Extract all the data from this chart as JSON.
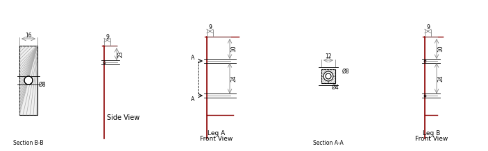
{
  "bg_color": "#ffffff",
  "line_color": "#000000",
  "dark_red": "#8B0000",
  "gray": "#888888",
  "section_bb": {
    "label": "Section B-B",
    "dim_16": "16",
    "dim_d8": "Ø8"
  },
  "side_view": {
    "label": "Side View",
    "dim_9": "9",
    "dim_23": "23"
  },
  "leg_a": {
    "label_line1": "Leg A",
    "label_line2": "Front View",
    "dim_9": "9",
    "dim_10": "10",
    "dim_24": "24",
    "section_a": "A"
  },
  "section_aa": {
    "label": "Section A-A",
    "dim_12": "12",
    "dim_d8": "Ø8",
    "dim_d4": "Ø4"
  },
  "leg_b": {
    "label_line1": "Leg B",
    "label_line2": "Front View",
    "dim_9": "9",
    "dim_10": "10",
    "dim_24": "24"
  }
}
